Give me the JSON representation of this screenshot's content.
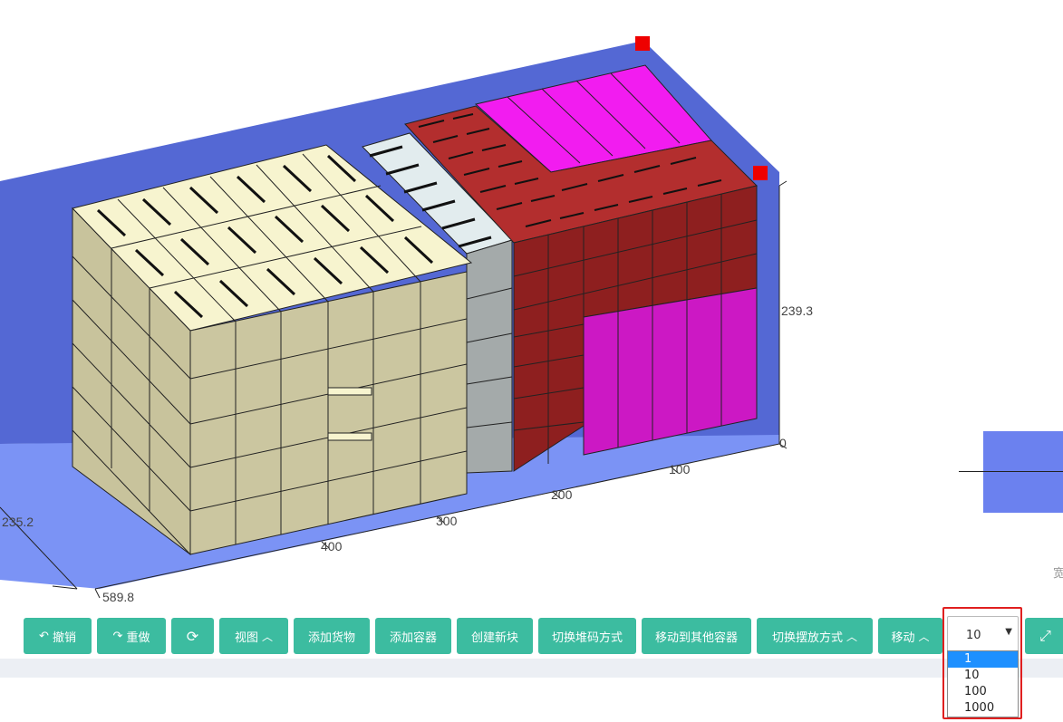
{
  "viewport": {
    "axis_labels": {
      "height": "239.3",
      "zero": "0",
      "len_100": "100",
      "len_200": "200",
      "len_300": "300",
      "len_400": "400",
      "length_total": "589.8",
      "width_total": "235.2"
    },
    "colors": {
      "container_wall": "#5468d4",
      "container_floor": "#7b93f5",
      "cargo_cream": "#cbc6a0",
      "cargo_cream_top": "#f7f4cf",
      "cargo_grey": "#a4aaaa",
      "cargo_grey_top": "#e2ecee",
      "cargo_red": "#8e1f1f",
      "cargo_red_top": "#b32e2e",
      "cargo_magenta": "#cc18c4",
      "cargo_magenta_top": "#f21cf0",
      "marker": "#ee0000"
    }
  },
  "toolbar": {
    "undo": "撤销",
    "redo": "重做",
    "refresh_icon": "refresh-icon",
    "view": "视图",
    "add_cargo": "添加货物",
    "add_container": "添加容器",
    "create_block": "创建新块",
    "switch_stack": "切换堆码方式",
    "move_to_other": "移动到其他容器",
    "switch_place": "切换摆放方式",
    "move": "移动",
    "fullscreen_icon": "expand-icon"
  },
  "step_select": {
    "value": "10",
    "options": [
      "1",
      "10",
      "100",
      "1000"
    ],
    "highlighted": "1"
  },
  "side_panel": {
    "label": "宽"
  }
}
